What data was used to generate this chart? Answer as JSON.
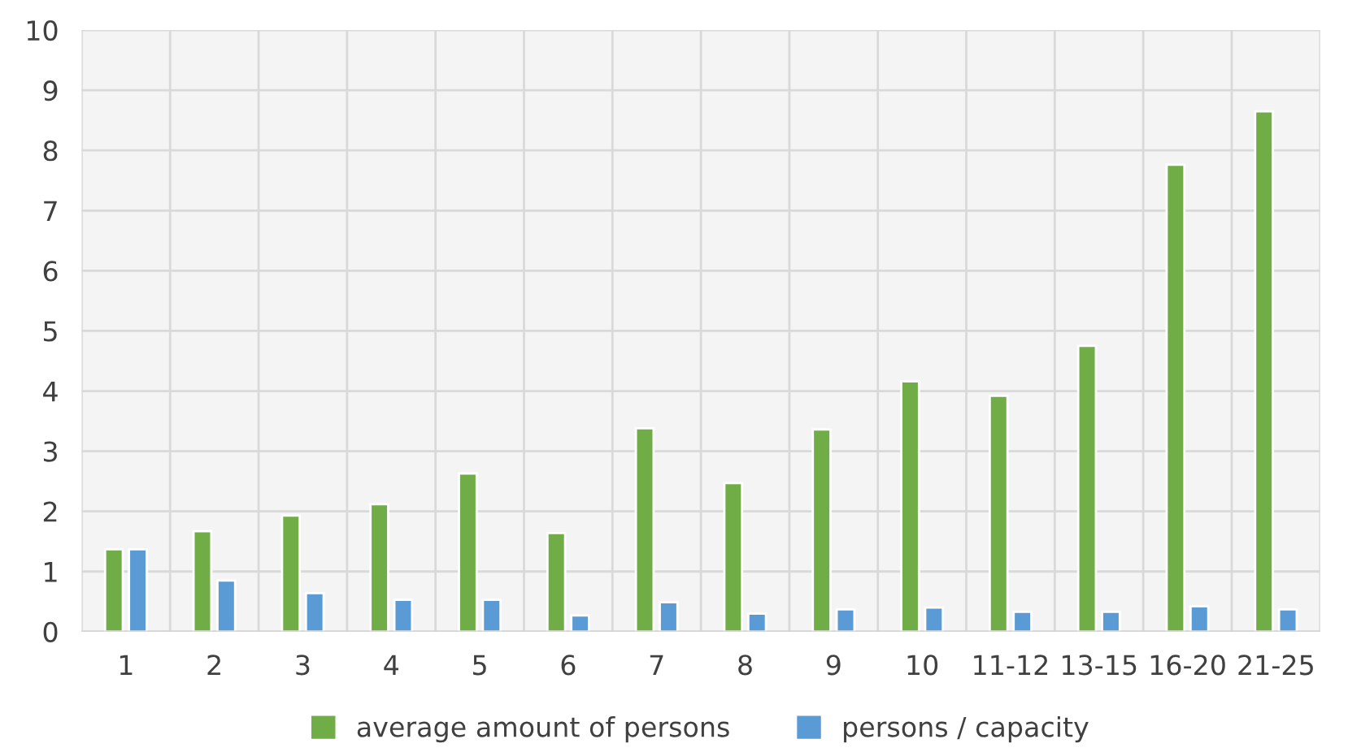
{
  "chart_data": {
    "type": "bar",
    "categories": [
      "1",
      "2",
      "3",
      "4",
      "5",
      "6",
      "7",
      "8",
      "9",
      "10",
      "11-12",
      "13-15",
      "16-20",
      "21-25"
    ],
    "series": [
      {
        "name": "average amount of persons",
        "color": "#70ad47",
        "values": [
          1.37,
          1.67,
          1.93,
          2.12,
          2.63,
          1.64,
          3.38,
          2.47,
          3.36,
          4.16,
          3.92,
          4.75,
          7.76,
          8.65
        ]
      },
      {
        "name": "persons / capacity",
        "color": "#5b9bd5",
        "values": [
          1.37,
          0.85,
          0.64,
          0.53,
          0.53,
          0.27,
          0.49,
          0.3,
          0.37,
          0.4,
          0.33,
          0.33,
          0.42,
          0.37
        ]
      }
    ],
    "ylim": [
      0,
      10
    ],
    "yticks": [
      0,
      1,
      2,
      3,
      4,
      5,
      6,
      7,
      8,
      9,
      10
    ],
    "grid": true,
    "legend": "bottom"
  }
}
